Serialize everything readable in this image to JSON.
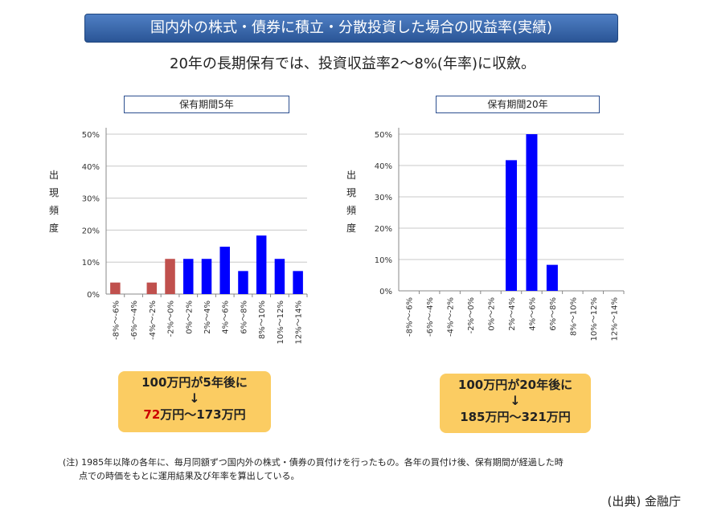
{
  "header": {
    "banner": "国内外の株式・債券に積立・分散投資した場合の収益率(実績)",
    "subtitle": "20年の長期保有では、投資収益率2〜8%(年率)に収斂。"
  },
  "chart_data": [
    {
      "type": "bar",
      "title": "保有期間5年",
      "ylabel": "出現頻度",
      "categories": [
        "-8%〜-6%",
        "-6%〜-4%",
        "-4%〜-2%",
        "-2%〜0%",
        "0%〜2%",
        "2%〜4%",
        "4%〜6%",
        "6%〜8%",
        "8%〜10%",
        "10%〜12%",
        "12%〜14%"
      ],
      "values": [
        3.6,
        0,
        3.6,
        11,
        11,
        11,
        14.8,
        7.2,
        18.3,
        11,
        7.2
      ],
      "colors": [
        "#c0504d",
        "#c0504d",
        "#c0504d",
        "#c0504d",
        "#0000ff",
        "#0000ff",
        "#0000ff",
        "#0000ff",
        "#0000ff",
        "#0000ff",
        "#0000ff"
      ],
      "yticks": [
        "0%",
        "10%",
        "20%",
        "30%",
        "40%",
        "50%"
      ],
      "ylim": [
        0,
        50
      ],
      "grid": true
    },
    {
      "type": "bar",
      "title": "保有期間20年",
      "ylabel": "出現頻度",
      "categories": [
        "-8%〜-6%",
        "-6%〜-4%",
        "-4%〜-2%",
        "-2%〜0%",
        "0%〜2%",
        "2%〜4%",
        "4%〜6%",
        "6%〜8%",
        "8%〜10%",
        "10%〜12%",
        "12%〜14%"
      ],
      "values": [
        0,
        0,
        0,
        0,
        0,
        41.7,
        50,
        8.3,
        0,
        0,
        0
      ],
      "colors": [
        "#0000ff",
        "#0000ff",
        "#0000ff",
        "#0000ff",
        "#0000ff",
        "#0000ff",
        "#0000ff",
        "#0000ff",
        "#0000ff",
        "#0000ff",
        "#0000ff"
      ],
      "yticks": [
        "0%",
        "10%",
        "20%",
        "30%",
        "40%",
        "50%"
      ],
      "ylim": [
        0,
        50
      ],
      "grid": true
    }
  ],
  "callouts": {
    "left": {
      "line1": "100万円が5年後に",
      "arrow": "↓",
      "red_value": "72",
      "line3_rest": "万円〜173万円"
    },
    "right": {
      "line1": "100万円が20年後に",
      "arrow": "↓",
      "line3": "185万円〜321万円"
    }
  },
  "footer": {
    "note_line1": "(注) 1985年以降の各年に、毎月同額ずつ国内外の株式・債券の買付けを行ったもの。各年の買付け後、保有期間が経過した時",
    "note_line2": "点での時価をもとに運用結果及び年率を算出している。",
    "source": "(出典) 金融庁"
  }
}
